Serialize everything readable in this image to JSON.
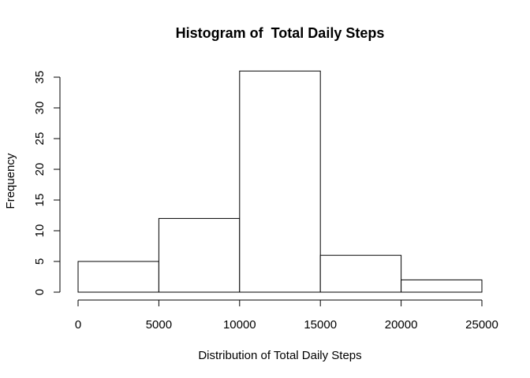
{
  "chart_data": {
    "type": "bar",
    "title": "Histogram of  Total Daily Steps",
    "xlabel": "Distribution of Total Daily Steps",
    "ylabel": "Frequency",
    "bins": [
      {
        "start": 0,
        "end": 5000,
        "count": 5
      },
      {
        "start": 5000,
        "end": 10000,
        "count": 12
      },
      {
        "start": 10000,
        "end": 15000,
        "count": 36
      },
      {
        "start": 15000,
        "end": 20000,
        "count": 6
      },
      {
        "start": 20000,
        "end": 25000,
        "count": 2
      }
    ],
    "xlim": [
      0,
      25000
    ],
    "ylim": [
      0,
      35
    ],
    "x_ticks": [
      0,
      5000,
      10000,
      15000,
      20000,
      25000
    ],
    "y_ticks": [
      0,
      5,
      10,
      15,
      20,
      25,
      30,
      35
    ],
    "grid": false,
    "colors": {
      "bar_fill": "#ffffff",
      "bar_stroke": "#000000"
    }
  }
}
